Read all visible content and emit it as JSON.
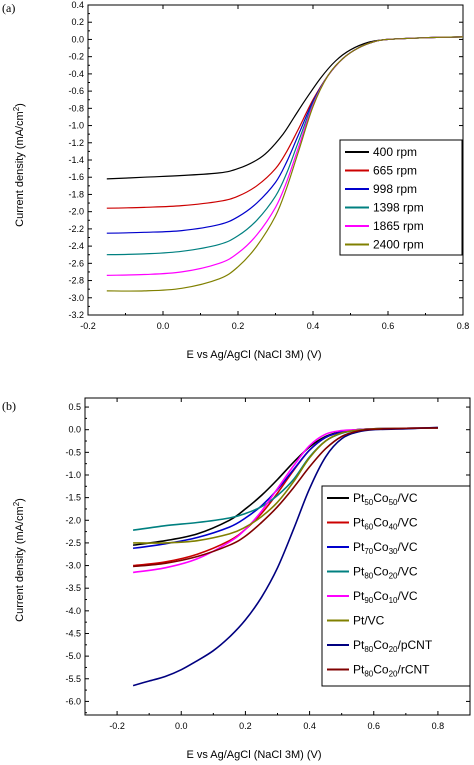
{
  "chart_data": [
    {
      "type": "line",
      "panel_label": "(a)",
      "title": "",
      "xlabel": "E vs Ag/AgCl (NaCl 3M) (V)",
      "ylabel": "Current density (mA/cm",
      "ylabel_sup": "2",
      "ylabel_end": ")",
      "xlim": [
        -0.2,
        0.8
      ],
      "ylim": [
        -3.2,
        0.4
      ],
      "xticks": [
        "-0.2",
        "0.0",
        "0.2",
        "0.4",
        "0.6",
        "0.8"
      ],
      "yticks": [
        "0.4",
        "0.2",
        "0.0",
        "-0.2",
        "-0.4",
        "-0.6",
        "-0.8",
        "-1.0",
        "-1.2",
        "-1.4",
        "-1.6",
        "-1.8",
        "-2.0",
        "-2.2",
        "-2.4",
        "-2.6",
        "-2.8",
        "-3.0",
        "-3.2"
      ],
      "legend_position": "right",
      "series": [
        {
          "name": "400 rpm",
          "color": "#000000",
          "x": [
            -0.15,
            -0.05,
            0.05,
            0.15,
            0.2,
            0.25,
            0.28,
            0.32,
            0.35,
            0.38,
            0.42,
            0.46,
            0.5,
            0.55,
            0.6,
            0.7,
            0.8
          ],
          "y": [
            -1.62,
            -1.6,
            -1.58,
            -1.55,
            -1.5,
            -1.4,
            -1.3,
            -1.1,
            -0.9,
            -0.7,
            -0.45,
            -0.25,
            -0.12,
            -0.03,
            0.0,
            0.02,
            0.03
          ]
        },
        {
          "name": "665 rpm",
          "color": "#cc0000",
          "x": [
            -0.15,
            -0.05,
            0.05,
            0.15,
            0.2,
            0.25,
            0.3,
            0.33,
            0.36,
            0.4,
            0.44,
            0.48,
            0.52,
            0.56,
            0.6,
            0.7,
            0.8
          ],
          "y": [
            -1.96,
            -1.95,
            -1.93,
            -1.88,
            -1.82,
            -1.7,
            -1.5,
            -1.3,
            -1.05,
            -0.7,
            -0.42,
            -0.22,
            -0.1,
            -0.03,
            0.0,
            0.02,
            0.03
          ]
        },
        {
          "name": "998 rpm",
          "color": "#0000cc",
          "x": [
            -0.15,
            -0.05,
            0.05,
            0.15,
            0.2,
            0.25,
            0.3,
            0.33,
            0.36,
            0.4,
            0.44,
            0.48,
            0.52,
            0.56,
            0.6,
            0.7,
            0.8
          ],
          "y": [
            -2.25,
            -2.24,
            -2.22,
            -2.15,
            -2.06,
            -1.9,
            -1.66,
            -1.42,
            -1.12,
            -0.72,
            -0.42,
            -0.22,
            -0.1,
            -0.03,
            0.0,
            0.02,
            0.03
          ]
        },
        {
          "name": "1398 rpm",
          "color": "#008080",
          "x": [
            -0.15,
            -0.05,
            0.05,
            0.15,
            0.2,
            0.25,
            0.3,
            0.33,
            0.36,
            0.4,
            0.44,
            0.48,
            0.52,
            0.56,
            0.6,
            0.7,
            0.8
          ],
          "y": [
            -2.5,
            -2.49,
            -2.46,
            -2.38,
            -2.28,
            -2.1,
            -1.82,
            -1.55,
            -1.2,
            -0.74,
            -0.42,
            -0.22,
            -0.1,
            -0.03,
            0.0,
            0.02,
            0.03
          ]
        },
        {
          "name": "1865 rpm",
          "color": "#ff00ff",
          "x": [
            -0.15,
            -0.05,
            0.05,
            0.15,
            0.2,
            0.25,
            0.3,
            0.33,
            0.36,
            0.4,
            0.44,
            0.48,
            0.52,
            0.56,
            0.6,
            0.7,
            0.8
          ],
          "y": [
            -2.74,
            -2.73,
            -2.7,
            -2.6,
            -2.48,
            -2.27,
            -1.95,
            -1.65,
            -1.27,
            -0.76,
            -0.42,
            -0.22,
            -0.1,
            -0.03,
            0.0,
            0.02,
            0.03
          ]
        },
        {
          "name": "2400 rpm",
          "color": "#808000",
          "x": [
            -0.15,
            -0.05,
            0.05,
            0.15,
            0.2,
            0.25,
            0.3,
            0.33,
            0.36,
            0.4,
            0.44,
            0.48,
            0.52,
            0.56,
            0.6,
            0.7,
            0.8
          ],
          "y": [
            -2.92,
            -2.92,
            -2.89,
            -2.78,
            -2.64,
            -2.4,
            -2.05,
            -1.72,
            -1.32,
            -0.78,
            -0.42,
            -0.22,
            -0.1,
            -0.03,
            0.0,
            0.02,
            0.03
          ]
        }
      ]
    },
    {
      "type": "line",
      "panel_label": "(b)",
      "title": "",
      "xlabel": "E vs Ag/AgCl (NaCl 3M) (V)",
      "ylabel": "Current density (mA/cm",
      "ylabel_sup": "2",
      "ylabel_end": ")",
      "xlim": [
        -0.3,
        0.9
      ],
      "ylim": [
        -6.3,
        0.7
      ],
      "xticks": [
        "-0.2",
        "0.0",
        "0.2",
        "0.4",
        "0.6",
        "0.8"
      ],
      "yticks": [
        "0.5",
        "0.0",
        "-0.5",
        "-1.0",
        "-1.5",
        "-2.0",
        "-2.5",
        "-3.0",
        "-3.5",
        "-4.0",
        "-4.5",
        "-5.0",
        "-5.5",
        "-6.0"
      ],
      "legend_position": "right",
      "series": [
        {
          "name": "Pt50Co50/VC",
          "label": {
            "base": "Pt",
            "s1": "50",
            "mid": "Co",
            "s2": "50",
            "suffix": "/VC"
          },
          "color": "#000000",
          "x": [
            -0.15,
            -0.05,
            0.05,
            0.15,
            0.2,
            0.25,
            0.3,
            0.35,
            0.4,
            0.45,
            0.5,
            0.55,
            0.6,
            0.7,
            0.8
          ],
          "y": [
            -2.55,
            -2.45,
            -2.3,
            -2.0,
            -1.75,
            -1.45,
            -1.1,
            -0.72,
            -0.38,
            -0.15,
            -0.04,
            0.0,
            0.02,
            0.03,
            0.04
          ]
        },
        {
          "name": "Pt60Co40/VC",
          "label": {
            "base": "Pt",
            "s1": "60",
            "mid": "Co",
            "s2": "40",
            "suffix": "/VC"
          },
          "color": "#cc0000",
          "x": [
            -0.15,
            -0.05,
            0.05,
            0.15,
            0.2,
            0.25,
            0.3,
            0.35,
            0.4,
            0.45,
            0.5,
            0.55,
            0.6,
            0.7,
            0.8
          ],
          "y": [
            -3.0,
            -2.92,
            -2.75,
            -2.45,
            -2.2,
            -1.85,
            -1.4,
            -0.9,
            -0.45,
            -0.17,
            -0.05,
            0.0,
            0.02,
            0.03,
            0.04
          ]
        },
        {
          "name": "Pt70Co30/VC",
          "label": {
            "base": "Pt",
            "s1": "70",
            "mid": "Co",
            "s2": "30",
            "suffix": "/VC"
          },
          "color": "#0000cc",
          "x": [
            -0.15,
            -0.05,
            0.05,
            0.15,
            0.2,
            0.25,
            0.3,
            0.35,
            0.4,
            0.45,
            0.5,
            0.55,
            0.6,
            0.7,
            0.8
          ],
          "y": [
            -2.62,
            -2.52,
            -2.38,
            -2.15,
            -1.95,
            -1.68,
            -1.32,
            -0.88,
            -0.45,
            -0.17,
            -0.05,
            0.0,
            0.02,
            0.03,
            0.04
          ]
        },
        {
          "name": "Pt80Co20/VC",
          "label": {
            "base": "Pt",
            "s1": "80",
            "mid": "Co",
            "s2": "20",
            "suffix": "/VC"
          },
          "color": "#008080",
          "x": [
            -0.15,
            -0.05,
            0.05,
            0.15,
            0.2,
            0.25,
            0.3,
            0.35,
            0.4,
            0.45,
            0.5,
            0.55,
            0.6,
            0.7,
            0.8
          ],
          "y": [
            -2.22,
            -2.12,
            -2.05,
            -1.95,
            -1.85,
            -1.7,
            -1.45,
            -1.1,
            -0.6,
            -0.25,
            -0.08,
            -0.01,
            0.02,
            0.03,
            0.04
          ]
        },
        {
          "name": "Pt90Co10/VC",
          "label": {
            "base": "Pt",
            "s1": "90",
            "mid": "Co",
            "s2": "10",
            "suffix": "/VC"
          },
          "color": "#ff00ff",
          "x": [
            -0.15,
            -0.05,
            0.05,
            0.15,
            0.2,
            0.25,
            0.3,
            0.35,
            0.4,
            0.45,
            0.5,
            0.55,
            0.6,
            0.7,
            0.8
          ],
          "y": [
            -3.15,
            -3.05,
            -2.85,
            -2.48,
            -2.2,
            -1.8,
            -1.3,
            -0.8,
            -0.35,
            -0.1,
            -0.02,
            0.0,
            0.02,
            0.03,
            0.04
          ]
        },
        {
          "name": "Pt/VC",
          "label": {
            "base": "Pt/VC",
            "s1": "",
            "mid": "",
            "s2": "",
            "suffix": ""
          },
          "color": "#808000",
          "x": [
            -0.15,
            -0.05,
            0.05,
            0.15,
            0.2,
            0.25,
            0.3,
            0.35,
            0.4,
            0.45,
            0.5,
            0.55,
            0.6,
            0.7,
            0.8
          ],
          "y": [
            -2.5,
            -2.5,
            -2.45,
            -2.3,
            -2.15,
            -1.92,
            -1.6,
            -1.15,
            -0.62,
            -0.25,
            -0.07,
            -0.01,
            0.02,
            0.03,
            0.04
          ]
        },
        {
          "name": "Pt80Co20/pCNT",
          "label": {
            "base": "Pt",
            "s1": "80",
            "mid": "Co",
            "s2": "20",
            "suffix": "/pCNT"
          },
          "color": "#000080",
          "x": [
            -0.15,
            -0.1,
            -0.05,
            0.0,
            0.05,
            0.1,
            0.15,
            0.2,
            0.25,
            0.3,
            0.35,
            0.4,
            0.45,
            0.5,
            0.55,
            0.6,
            0.7,
            0.8
          ],
          "y": [
            -5.65,
            -5.55,
            -5.45,
            -5.3,
            -5.1,
            -4.88,
            -4.58,
            -4.2,
            -3.7,
            -3.05,
            -2.2,
            -1.3,
            -0.6,
            -0.2,
            -0.05,
            0.0,
            0.02,
            0.05
          ]
        },
        {
          "name": "Pt80Co20/rCNT",
          "label": {
            "base": "Pt",
            "s1": "80",
            "mid": "Co",
            "s2": "20",
            "suffix": "/rCNT"
          },
          "color": "#800000",
          "x": [
            -0.15,
            -0.05,
            0.05,
            0.15,
            0.2,
            0.25,
            0.3,
            0.35,
            0.4,
            0.45,
            0.5,
            0.55,
            0.6,
            0.7,
            0.8
          ],
          "y": [
            -3.02,
            -2.95,
            -2.8,
            -2.55,
            -2.35,
            -2.05,
            -1.7,
            -1.28,
            -0.82,
            -0.42,
            -0.15,
            -0.03,
            0.01,
            0.03,
            0.04
          ]
        }
      ]
    }
  ]
}
